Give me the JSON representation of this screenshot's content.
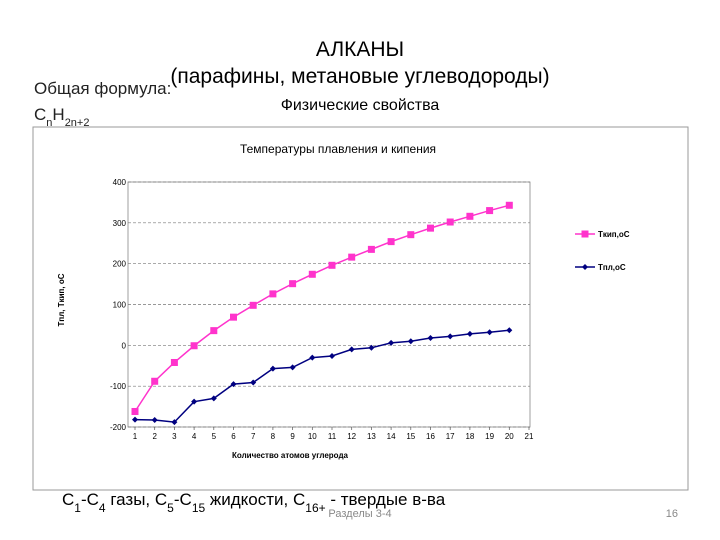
{
  "slide": {
    "title": "АЛКАНЫ",
    "subtitle": "(парафины, метановые углеводороды)",
    "formula_label": "Общая формула:",
    "formula": [
      "C",
      "n",
      "H",
      "2n+2"
    ],
    "section": "Физические свойства",
    "note": [
      "C",
      "1",
      "-C",
      "4",
      " газы, C",
      "5",
      "-C",
      "15",
      " жидкости, C",
      "16+",
      " - твердые в-ва"
    ],
    "footer": "Разделы 3-4",
    "page": "16"
  },
  "chart_data": {
    "type": "line",
    "title": "Температуры плавления и кипения",
    "x_label": "Количество атомов углерода",
    "y_label": "Tпл, Tкип, oC",
    "x": [
      1,
      2,
      3,
      4,
      5,
      6,
      7,
      8,
      9,
      10,
      11,
      12,
      13,
      14,
      15,
      16,
      17,
      18,
      19,
      20
    ],
    "series": [
      {
        "name": "Tкип,oC",
        "color": "#ff33cc",
        "marker": "square",
        "values": [
          -162,
          -88,
          -42,
          -1,
          36,
          69,
          98,
          126,
          151,
          174,
          196,
          216,
          235,
          254,
          271,
          287,
          302,
          316,
          330,
          343
        ]
      },
      {
        "name": "Tпл,oC",
        "color": "#000080",
        "marker": "diamond",
        "values": [
          -182,
          -183,
          -188,
          -138,
          -130,
          -95,
          -91,
          -57,
          -54,
          -30,
          -26,
          -10,
          -6,
          6,
          10,
          18,
          22,
          28,
          32,
          37
        ]
      }
    ],
    "xlim": [
      1,
      21
    ],
    "xticks": [
      1,
      2,
      3,
      4,
      5,
      6,
      7,
      8,
      9,
      10,
      11,
      12,
      13,
      14,
      15,
      16,
      17,
      18,
      19,
      20,
      21
    ],
    "ylim": [
      -200,
      400
    ],
    "yticks": [
      -200,
      -100,
      0,
      100,
      200,
      300,
      400
    ],
    "grid": true,
    "legend": "right"
  }
}
